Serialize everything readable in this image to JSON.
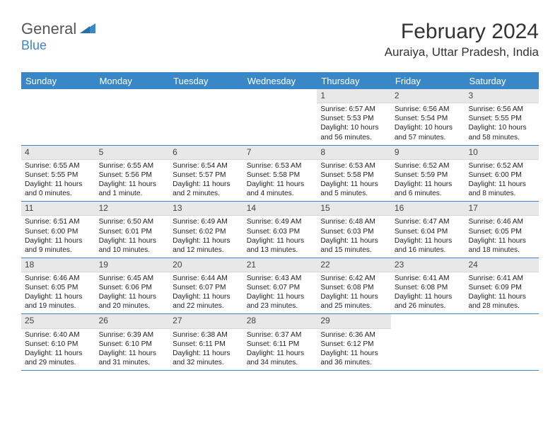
{
  "logo": {
    "general": "General",
    "blue": "Blue"
  },
  "title": "February 2024",
  "location": "Auraiya, Uttar Pradesh, India",
  "colors": {
    "accent": "#3a87c7",
    "headerBg": "#3a87c7",
    "dayBarBg": "#e8e8e8",
    "text": "#222"
  },
  "dayNames": [
    "Sunday",
    "Monday",
    "Tuesday",
    "Wednesday",
    "Thursday",
    "Friday",
    "Saturday"
  ],
  "weeks": [
    [
      null,
      null,
      null,
      null,
      {
        "num": "1",
        "sunrise": "Sunrise: 6:57 AM",
        "sunset": "Sunset: 5:53 PM",
        "daylight": "Daylight: 10 hours and 56 minutes."
      },
      {
        "num": "2",
        "sunrise": "Sunrise: 6:56 AM",
        "sunset": "Sunset: 5:54 PM",
        "daylight": "Daylight: 10 hours and 57 minutes."
      },
      {
        "num": "3",
        "sunrise": "Sunrise: 6:56 AM",
        "sunset": "Sunset: 5:55 PM",
        "daylight": "Daylight: 10 hours and 58 minutes."
      }
    ],
    [
      {
        "num": "4",
        "sunrise": "Sunrise: 6:55 AM",
        "sunset": "Sunset: 5:55 PM",
        "daylight": "Daylight: 11 hours and 0 minutes."
      },
      {
        "num": "5",
        "sunrise": "Sunrise: 6:55 AM",
        "sunset": "Sunset: 5:56 PM",
        "daylight": "Daylight: 11 hours and 1 minute."
      },
      {
        "num": "6",
        "sunrise": "Sunrise: 6:54 AM",
        "sunset": "Sunset: 5:57 PM",
        "daylight": "Daylight: 11 hours and 2 minutes."
      },
      {
        "num": "7",
        "sunrise": "Sunrise: 6:53 AM",
        "sunset": "Sunset: 5:58 PM",
        "daylight": "Daylight: 11 hours and 4 minutes."
      },
      {
        "num": "8",
        "sunrise": "Sunrise: 6:53 AM",
        "sunset": "Sunset: 5:58 PM",
        "daylight": "Daylight: 11 hours and 5 minutes."
      },
      {
        "num": "9",
        "sunrise": "Sunrise: 6:52 AM",
        "sunset": "Sunset: 5:59 PM",
        "daylight": "Daylight: 11 hours and 6 minutes."
      },
      {
        "num": "10",
        "sunrise": "Sunrise: 6:52 AM",
        "sunset": "Sunset: 6:00 PM",
        "daylight": "Daylight: 11 hours and 8 minutes."
      }
    ],
    [
      {
        "num": "11",
        "sunrise": "Sunrise: 6:51 AM",
        "sunset": "Sunset: 6:00 PM",
        "daylight": "Daylight: 11 hours and 9 minutes."
      },
      {
        "num": "12",
        "sunrise": "Sunrise: 6:50 AM",
        "sunset": "Sunset: 6:01 PM",
        "daylight": "Daylight: 11 hours and 10 minutes."
      },
      {
        "num": "13",
        "sunrise": "Sunrise: 6:49 AM",
        "sunset": "Sunset: 6:02 PM",
        "daylight": "Daylight: 11 hours and 12 minutes."
      },
      {
        "num": "14",
        "sunrise": "Sunrise: 6:49 AM",
        "sunset": "Sunset: 6:03 PM",
        "daylight": "Daylight: 11 hours and 13 minutes."
      },
      {
        "num": "15",
        "sunrise": "Sunrise: 6:48 AM",
        "sunset": "Sunset: 6:03 PM",
        "daylight": "Daylight: 11 hours and 15 minutes."
      },
      {
        "num": "16",
        "sunrise": "Sunrise: 6:47 AM",
        "sunset": "Sunset: 6:04 PM",
        "daylight": "Daylight: 11 hours and 16 minutes."
      },
      {
        "num": "17",
        "sunrise": "Sunrise: 6:46 AM",
        "sunset": "Sunset: 6:05 PM",
        "daylight": "Daylight: 11 hours and 18 minutes."
      }
    ],
    [
      {
        "num": "18",
        "sunrise": "Sunrise: 6:46 AM",
        "sunset": "Sunset: 6:05 PM",
        "daylight": "Daylight: 11 hours and 19 minutes."
      },
      {
        "num": "19",
        "sunrise": "Sunrise: 6:45 AM",
        "sunset": "Sunset: 6:06 PM",
        "daylight": "Daylight: 11 hours and 20 minutes."
      },
      {
        "num": "20",
        "sunrise": "Sunrise: 6:44 AM",
        "sunset": "Sunset: 6:07 PM",
        "daylight": "Daylight: 11 hours and 22 minutes."
      },
      {
        "num": "21",
        "sunrise": "Sunrise: 6:43 AM",
        "sunset": "Sunset: 6:07 PM",
        "daylight": "Daylight: 11 hours and 23 minutes."
      },
      {
        "num": "22",
        "sunrise": "Sunrise: 6:42 AM",
        "sunset": "Sunset: 6:08 PM",
        "daylight": "Daylight: 11 hours and 25 minutes."
      },
      {
        "num": "23",
        "sunrise": "Sunrise: 6:41 AM",
        "sunset": "Sunset: 6:08 PM",
        "daylight": "Daylight: 11 hours and 26 minutes."
      },
      {
        "num": "24",
        "sunrise": "Sunrise: 6:41 AM",
        "sunset": "Sunset: 6:09 PM",
        "daylight": "Daylight: 11 hours and 28 minutes."
      }
    ],
    [
      {
        "num": "25",
        "sunrise": "Sunrise: 6:40 AM",
        "sunset": "Sunset: 6:10 PM",
        "daylight": "Daylight: 11 hours and 29 minutes."
      },
      {
        "num": "26",
        "sunrise": "Sunrise: 6:39 AM",
        "sunset": "Sunset: 6:10 PM",
        "daylight": "Daylight: 11 hours and 31 minutes."
      },
      {
        "num": "27",
        "sunrise": "Sunrise: 6:38 AM",
        "sunset": "Sunset: 6:11 PM",
        "daylight": "Daylight: 11 hours and 32 minutes."
      },
      {
        "num": "28",
        "sunrise": "Sunrise: 6:37 AM",
        "sunset": "Sunset: 6:11 PM",
        "daylight": "Daylight: 11 hours and 34 minutes."
      },
      {
        "num": "29",
        "sunrise": "Sunrise: 6:36 AM",
        "sunset": "Sunset: 6:12 PM",
        "daylight": "Daylight: 11 hours and 36 minutes."
      },
      null,
      null
    ]
  ]
}
